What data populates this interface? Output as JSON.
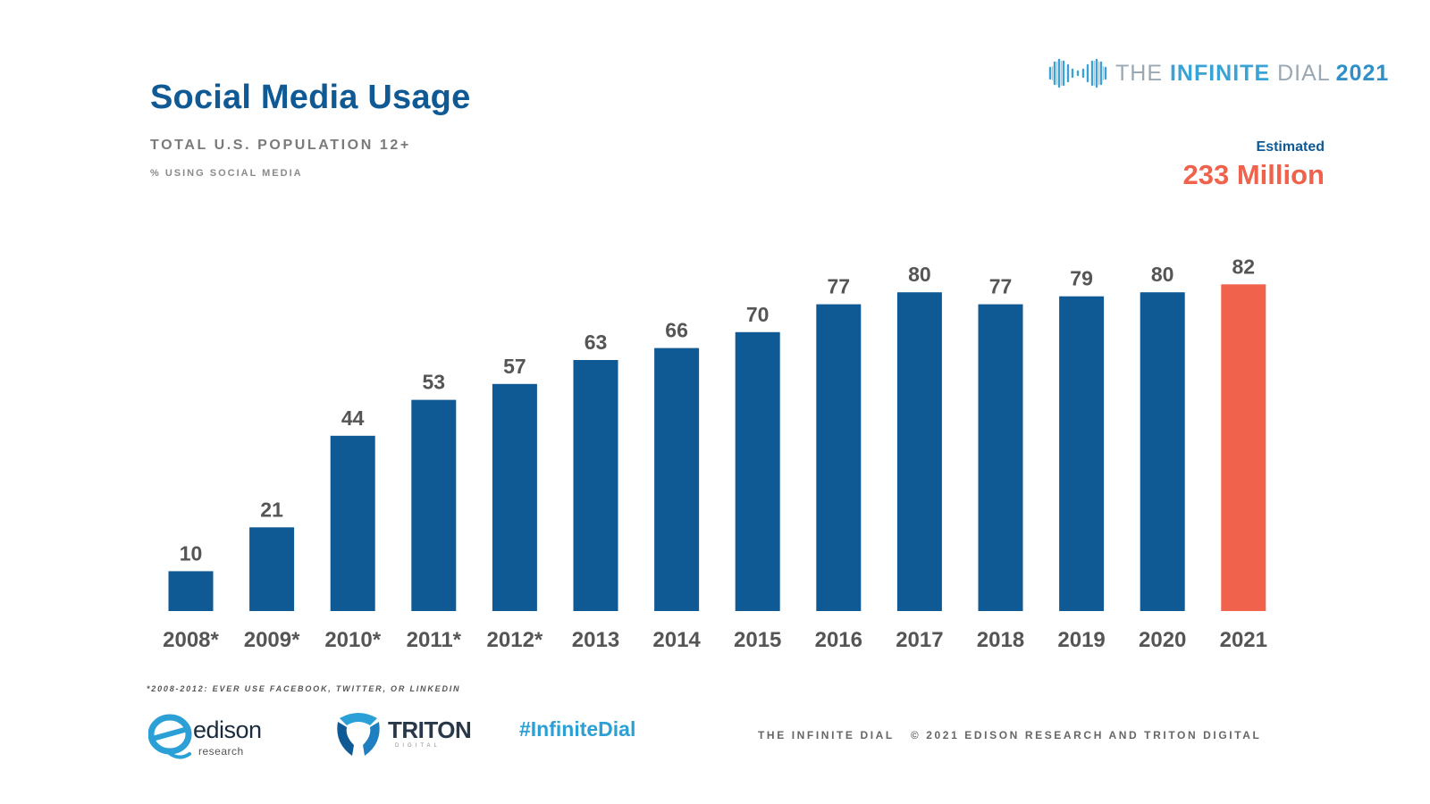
{
  "header": {
    "title": "Social Media Usage",
    "subtitle": "TOTAL U.S. POPULATION 12+",
    "metric_label": "% USING SOCIAL MEDIA"
  },
  "brand": {
    "the": "THE",
    "infinite": "INFINITE",
    "dial": "DIAL",
    "year": "2021"
  },
  "estimate": {
    "label": "Estimated",
    "value": "233 Million"
  },
  "chart_data": {
    "type": "bar",
    "categories": [
      "2008*",
      "2009*",
      "2010*",
      "2011*",
      "2012*",
      "2013",
      "2014",
      "2015",
      "2016",
      "2017",
      "2018",
      "2019",
      "2020",
      "2021"
    ],
    "values": [
      10,
      21,
      44,
      53,
      57,
      63,
      66,
      70,
      77,
      80,
      77,
      79,
      80,
      82
    ],
    "ylim": [
      0,
      100
    ],
    "grid": false,
    "highlight_index": 13,
    "colors": {
      "bar": "#0f5a94",
      "highlight": "#f0624c"
    }
  },
  "footnote": "*2008-2012: EVER USE FACEBOOK, TWITTER, OR LINKEDIN",
  "footer": {
    "edison_word": "edison",
    "edison_sub": "research",
    "triton_word": "TRITON",
    "triton_sub": "DIGITAL",
    "hashtag": "#InfiniteDial",
    "copyright_left": "THE INFINITE DIAL",
    "copyright_right": "© 2021 EDISON RESEARCH AND TRITON DIGITAL"
  }
}
